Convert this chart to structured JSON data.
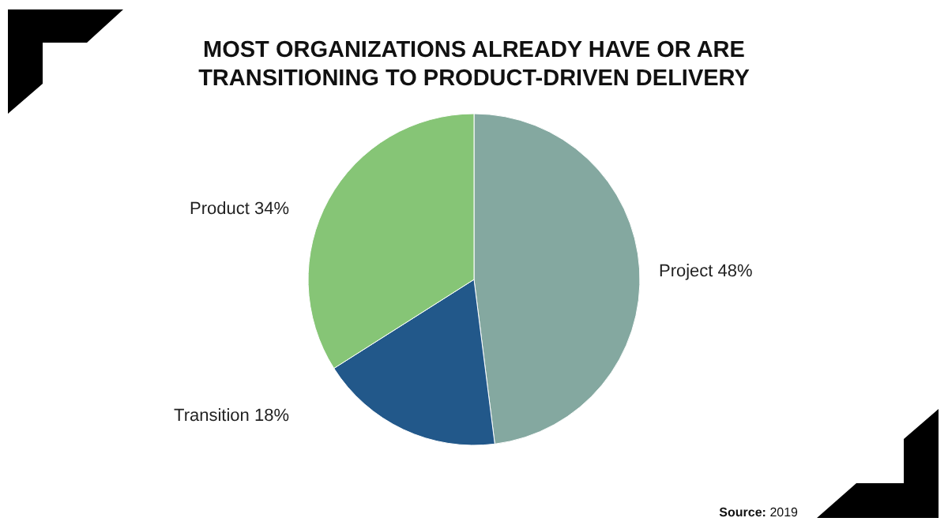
{
  "chart_data": {
    "type": "pie",
    "title": "MOST ORGANIZATIONS ALREADY HAVE OR ARE TRANSITIONING TO PRODUCT-DRIVEN DELIVERY",
    "categories": [
      "Project",
      "Transition",
      "Product"
    ],
    "values": [
      48,
      18,
      34
    ],
    "value_labels": [
      "48%",
      "18%",
      "34%"
    ],
    "colors": [
      "#84a8a0",
      "#22588a",
      "#86c576"
    ],
    "annotations": [
      "Source: 2019"
    ]
  }
}
